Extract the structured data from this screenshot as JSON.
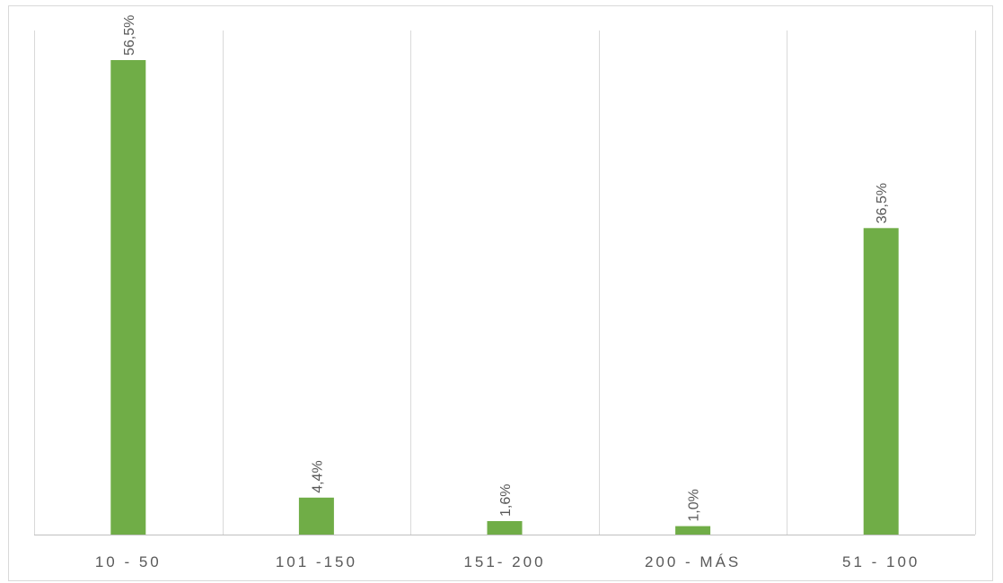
{
  "chart_data": {
    "type": "bar",
    "categories": [
      "10 - 50",
      "101 -150",
      "151- 200",
      "200 - MÁS",
      "51 - 100"
    ],
    "values": [
      56.5,
      4.4,
      1.6,
      1.0,
      36.5
    ],
    "value_labels": [
      "56,5%",
      "4,4%",
      "1,6%",
      "1,0%",
      "36,5%"
    ],
    "unit": "%",
    "title": "",
    "xlabel": "",
    "ylabel": "",
    "ylim": [
      0,
      56.5
    ],
    "grid": "vertical",
    "legend": "none",
    "colors": {
      "bar": "#70ad47",
      "grid": "#d9d9d9",
      "axis": "#bfbfbf",
      "text": "#595959",
      "border": "#d9d9d9"
    }
  }
}
